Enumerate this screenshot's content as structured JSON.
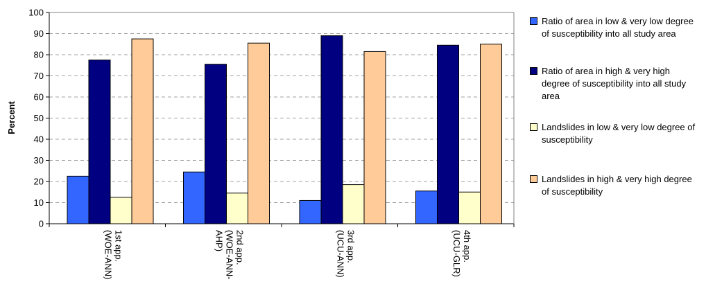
{
  "chart_data": {
    "type": "bar",
    "ylabel": "Percent",
    "xlabel": "",
    "ylim": [
      0,
      100
    ],
    "yticks": [
      "0",
      "10",
      "20",
      "30",
      "40",
      "50",
      "60",
      "70",
      "80",
      "90",
      "100"
    ],
    "grid": "horizontal dashed",
    "legend_position": "right",
    "categories": [
      [
        "1st app.",
        "(WOE-ANN)"
      ],
      [
        "2nd app.",
        "(WOE-ANN-",
        "AHP)"
      ],
      [
        "3rd app.",
        "(UCU-ANN)"
      ],
      [
        "4th app.",
        "(UCU-GLR)"
      ]
    ],
    "series": [
      {
        "name": "Ratio of area in low & very low degree of susceptibility into all study area",
        "color": "#3366ff",
        "values": [
          22.5,
          24.5,
          11,
          15.5
        ]
      },
      {
        "name": "Ratio of area in high & very high degree of susceptibility into all study area",
        "color": "#000080",
        "values": [
          77.5,
          75.5,
          89,
          84.5
        ]
      },
      {
        "name": "Landslides in low & very low degree of susceptibility",
        "color": "#ffffcc",
        "values": [
          12.5,
          14.5,
          18.5,
          15
        ]
      },
      {
        "name": "Landslides in high & very high degree of susceptibility",
        "color": "#ffcc99",
        "values": [
          87.5,
          85.5,
          81.5,
          85
        ]
      }
    ]
  }
}
